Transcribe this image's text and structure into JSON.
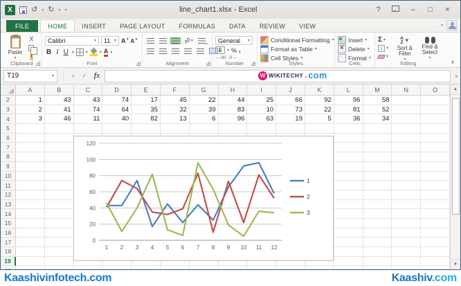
{
  "window": {
    "title": "line_chart1.xlsx - Excel",
    "controls": {
      "help": "?",
      "minimize": "–",
      "maximize": "□",
      "close": "×"
    }
  },
  "quick_access": {
    "undo": "↺",
    "redo": "↻"
  },
  "ribbon": {
    "tabs": [
      {
        "label": "FILE",
        "type": "file"
      },
      {
        "label": "HOME",
        "active": true
      },
      {
        "label": "INSERT"
      },
      {
        "label": "PAGE LAYOUT"
      },
      {
        "label": "FORMULAS"
      },
      {
        "label": "DATA"
      },
      {
        "label": "REVIEW"
      },
      {
        "label": "VIEW"
      }
    ],
    "clipboard": {
      "label": "Clipboard",
      "paste": "Paste"
    },
    "font": {
      "label": "Font",
      "name": "Calibri",
      "size": "11",
      "bold": "B",
      "italic": "I",
      "underline": "U",
      "grow": "A",
      "shrink": "A",
      "color_letter": "A"
    },
    "alignment": {
      "label": "Alignment",
      "orientation": "ab"
    },
    "number": {
      "label": "Number",
      "format": "General",
      "currency": "$",
      "percent": "%",
      "comma": ",",
      "inc_decimal": ".00",
      "dec_decimal": ".0"
    },
    "styles": {
      "label": "Styles",
      "items": [
        "Conditional Formatting",
        "Format as Table",
        "Cell Styles"
      ]
    },
    "cells": {
      "label": "Cells",
      "items": [
        "Insert",
        "Delete",
        "Format"
      ]
    },
    "editing": {
      "label": "Editing",
      "autosum": "Σ",
      "fill": "↓",
      "items": [
        "Sort & Filter",
        "Find & Select"
      ]
    }
  },
  "formula_bar": {
    "name_box": "T19",
    "cancel": "×",
    "enter": "✓",
    "fx": "fx",
    "value": ""
  },
  "watermark": {
    "badge": "W",
    "brand": "WIKITECHY",
    "dot": ".",
    "tld": "com"
  },
  "sheet": {
    "columns": [
      "A",
      "B",
      "C",
      "D",
      "E",
      "F",
      "G",
      "H",
      "I",
      "J",
      "K",
      "L",
      "M",
      "N",
      "O"
    ],
    "visible_rows_start": 2,
    "visible_rows_end": 20,
    "selected_row": 19,
    "rows": [
      {
        "row": 2,
        "values": [
          1,
          43,
          43,
          74,
          17,
          45,
          22,
          44,
          25,
          66,
          92,
          96,
          58
        ]
      },
      {
        "row": 3,
        "values": [
          2,
          41,
          74,
          64,
          35,
          32,
          39,
          83,
          10,
          73,
          22,
          81,
          52
        ]
      },
      {
        "row": 4,
        "values": [
          3,
          46,
          11,
          40,
          82,
          13,
          6,
          96,
          63,
          19,
          5,
          36,
          34
        ]
      }
    ]
  },
  "chart_data": {
    "type": "line",
    "title": "",
    "xlabel": "",
    "ylabel": "",
    "x": [
      1,
      2,
      3,
      4,
      5,
      6,
      7,
      8,
      9,
      10,
      11,
      12
    ],
    "series": [
      {
        "name": "1",
        "color": "#4F81BD",
        "values": [
          43,
          43,
          74,
          17,
          45,
          22,
          44,
          25,
          66,
          92,
          96,
          58
        ]
      },
      {
        "name": "2",
        "color": "#C0504D",
        "values": [
          41,
          74,
          64,
          35,
          32,
          39,
          83,
          10,
          73,
          22,
          81,
          52
        ]
      },
      {
        "name": "3",
        "color": "#9BBB59",
        "values": [
          46,
          11,
          40,
          82,
          13,
          6,
          96,
          63,
          19,
          5,
          36,
          34
        ]
      }
    ],
    "ylim": [
      0,
      120
    ],
    "ytick_step": 20,
    "grid": true,
    "legend_position": "right"
  },
  "footer": {
    "left": "Kaashivinfotech.com",
    "right_main": "Kaashiv",
    "right_tld": ".com"
  },
  "ui": {
    "collapse_ribbon": "∧",
    "expand_formula": "∨",
    "scroll_up": "▲",
    "scroll_down": "▼"
  }
}
